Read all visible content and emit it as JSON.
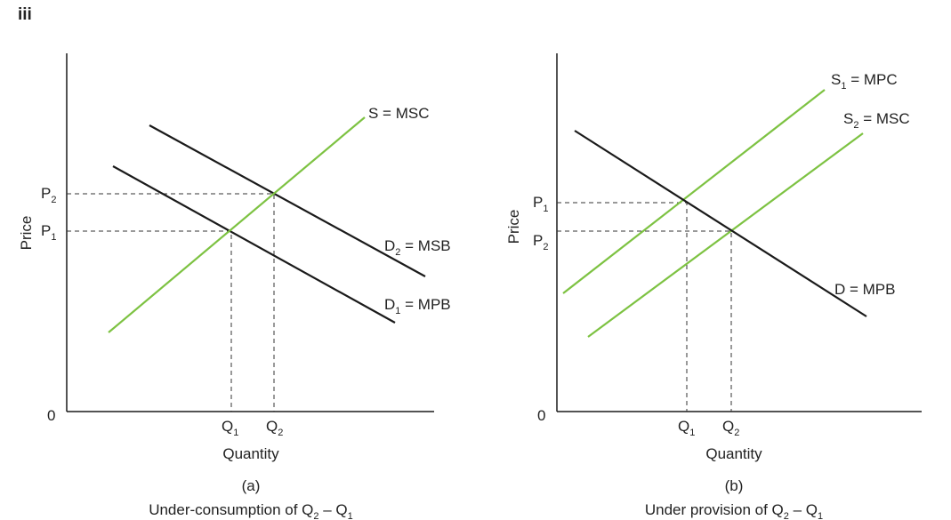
{
  "figure_label": "iii",
  "colors": {
    "demand": "#1a1a1a",
    "supply": "#7dc242",
    "guides": "#333333"
  },
  "panel_a": {
    "y_axis_label": "Price",
    "x_axis_label": "Quantity",
    "origin_label": "0",
    "panel_id": "(a)",
    "caption_text": "Under-consumption of Q",
    "caption_sub1": "2",
    "caption_mid": " – Q",
    "caption_sub2": "1",
    "price_labels": [
      {
        "main": "P",
        "sub": "2"
      },
      {
        "main": "P",
        "sub": "1"
      }
    ],
    "quantity_labels": [
      {
        "main": "Q",
        "sub": "1"
      },
      {
        "main": "Q",
        "sub": "2"
      }
    ],
    "curves": {
      "supply": {
        "pre": "S = MSC",
        "sub": "",
        "post": ""
      },
      "d2": {
        "pre": "D",
        "sub": "2",
        "post": " = MSB"
      },
      "d1": {
        "pre": "D",
        "sub": "1",
        "post": " = MPB"
      }
    }
  },
  "panel_b": {
    "y_axis_label": "Price",
    "x_axis_label": "Quantity",
    "origin_label": "0",
    "panel_id": "(b)",
    "caption_text": "Under provision of Q",
    "caption_sub1": "2",
    "caption_mid": " – Q",
    "caption_sub2": "1",
    "price_labels": [
      {
        "main": "P",
        "sub": "1"
      },
      {
        "main": "P",
        "sub": "2"
      }
    ],
    "quantity_labels": [
      {
        "main": "Q",
        "sub": "1"
      },
      {
        "main": "Q",
        "sub": "2"
      }
    ],
    "curves": {
      "s1": {
        "pre": "S",
        "sub": "1",
        "post": " = MPC"
      },
      "s2": {
        "pre": "S",
        "sub": "2",
        "post": " = MSC"
      },
      "demand": {
        "pre": "D = MPB",
        "sub": "",
        "post": ""
      }
    }
  }
}
